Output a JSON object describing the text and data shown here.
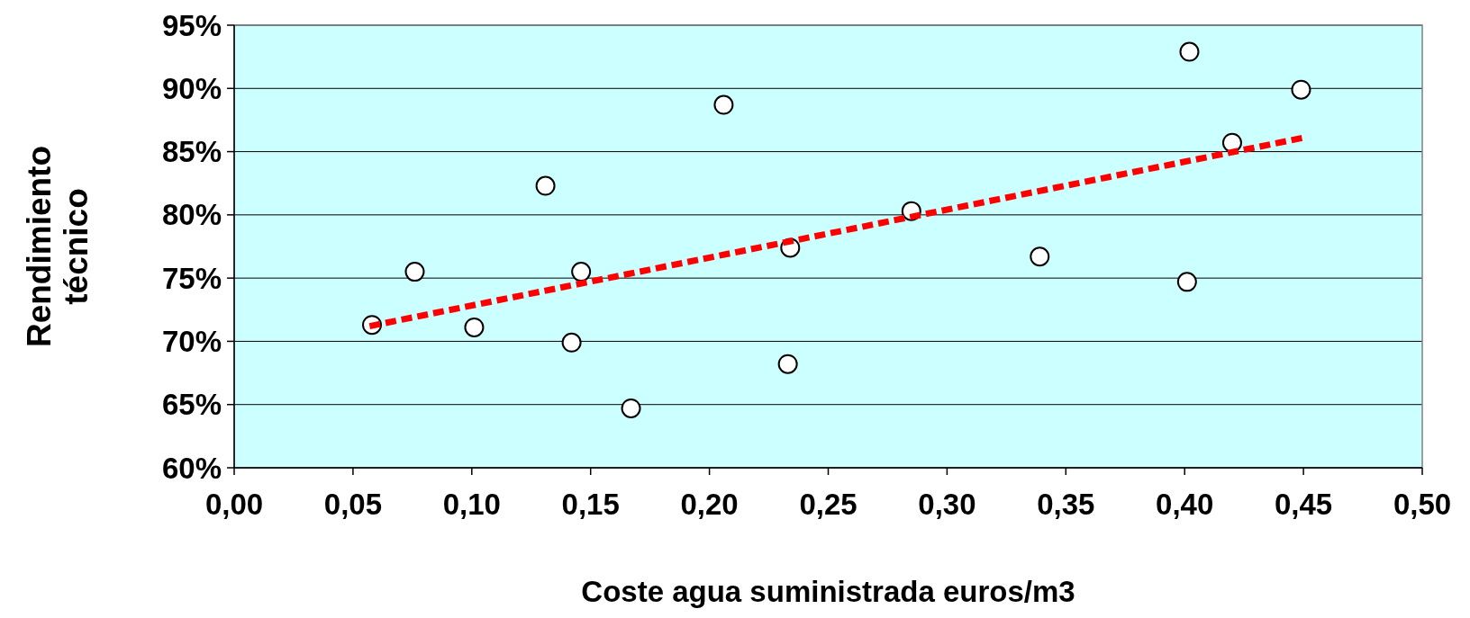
{
  "chart_data": {
    "type": "scatter",
    "xlabel": "Coste agua suministrada euros/m3",
    "ylabel": "Rendimiento técnico",
    "xlim": [
      0,
      0.5
    ],
    "ylim": [
      60,
      95
    ],
    "xticks": [
      {
        "value": 0,
        "label": "0,00"
      },
      {
        "value": 0.05,
        "label": "0,05"
      },
      {
        "value": 0.1,
        "label": "0,10"
      },
      {
        "value": 0.15,
        "label": "0,15"
      },
      {
        "value": 0.2,
        "label": "0,20"
      },
      {
        "value": 0.25,
        "label": "0,25"
      },
      {
        "value": 0.3,
        "label": "0,30"
      },
      {
        "value": 0.35,
        "label": "0,35"
      },
      {
        "value": 0.4,
        "label": "0,40"
      },
      {
        "value": 0.45,
        "label": "0,45"
      },
      {
        "value": 0.5,
        "label": "0,50"
      }
    ],
    "yticks": [
      {
        "value": 60,
        "label": "60%"
      },
      {
        "value": 65,
        "label": "65%"
      },
      {
        "value": 70,
        "label": "70%"
      },
      {
        "value": 75,
        "label": "75%"
      },
      {
        "value": 80,
        "label": "80%"
      },
      {
        "value": 85,
        "label": "85%"
      },
      {
        "value": 90,
        "label": "90%"
      },
      {
        "value": 95,
        "label": "95%"
      }
    ],
    "grid": "y",
    "series": [
      {
        "color": "#ffffff",
        "marker": "circle",
        "x": [
          0.058,
          0.076,
          0.101,
          0.131,
          0.142,
          0.146,
          0.167,
          0.206,
          0.234,
          0.233,
          0.285,
          0.339,
          0.402,
          0.401,
          0.42,
          0.449
        ],
        "values": [
          71.3,
          75.5,
          71.1,
          82.3,
          69.9,
          75.5,
          64.7,
          88.7,
          77.4,
          68.2,
          80.3,
          76.7,
          92.9,
          74.7,
          85.7,
          89.9
        ]
      },
      {
        "type": "line",
        "color": "#ff0000",
        "line_style": "dashed",
        "marker": "none",
        "x": [
          0.057,
          0.45
        ],
        "values": [
          71.2,
          86.1
        ]
      }
    ]
  }
}
